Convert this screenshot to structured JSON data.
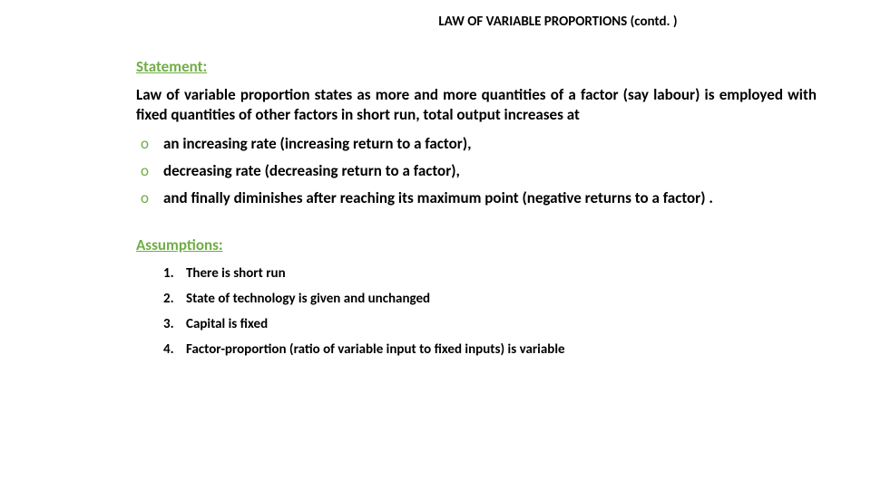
{
  "title": "LAW OF VARIABLE PROPORTIONS (contd. )",
  "headings": {
    "statement": "Statement:",
    "assumptions": "Assumptions:"
  },
  "statement_text": "Law of variable proportion  states as more and more  quantities of a factor (say labour) is employed with fixed quantities of other factors  in short run, total output increases at",
  "bullets": [
    "an increasing rate (increasing return to a factor),",
    "decreasing rate (decreasing return to a factor),",
    "and finally diminishes after reaching its maximum point (negative returns to a factor) ."
  ],
  "assumptions": [
    "There is short run",
    "State of technology is given and unchanged",
    "Capital is fixed",
    "Factor-proportion  (ratio of variable input to fixed inputs) is variable"
  ],
  "colors": {
    "heading_color": "#70ad47",
    "text_color": "#000000",
    "background": "#ffffff"
  }
}
